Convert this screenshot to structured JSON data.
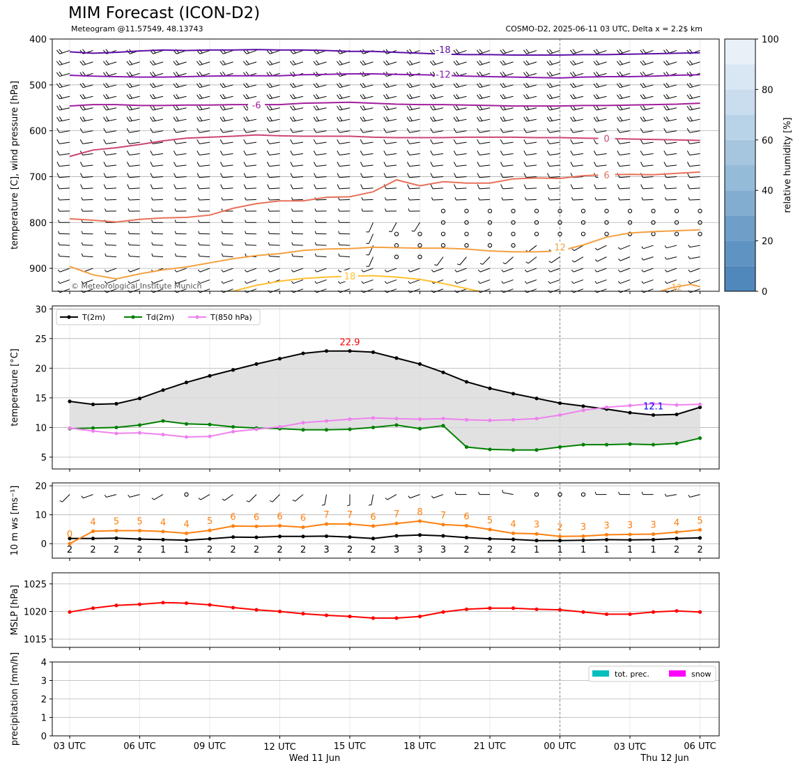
{
  "header": {
    "title": "MIM Forecast (ICON-D2)",
    "subtitle_left": "Meteogram @11.57549, 48.13743",
    "subtitle_right": "COSMO-D2, 2025-06-11 03 UTC, Delta x = 2.2$ km",
    "copyright": "© Meteorological Institute Munich"
  },
  "colors": {
    "t2m": "#000000",
    "td2m": "#008000",
    "t850": "#ee82ee",
    "speed": "#ff7f0e",
    "mslp": "#ff0000",
    "precip": "#00bfbf",
    "snow": "#ff00ff",
    "annot_max": "#ff0000",
    "annot_min": "#0000ff"
  },
  "chart_data": [
    {
      "id": "upper_air",
      "type": "heatmap",
      "ylabel": "temperature [C], wind pressure [hPa]",
      "yticks": [
        400,
        500,
        600,
        700,
        800,
        900
      ],
      "ylim": [
        950,
        400
      ],
      "colorbar": {
        "label": "relative humidity [%]",
        "ticks": [
          0,
          20,
          40,
          60,
          80,
          100
        ]
      },
      "isotherms": [
        {
          "label": "-18",
          "color": "#5b0fa8",
          "p": [
            428,
            431,
            429,
            426,
            424,
            425,
            424,
            424,
            423,
            424,
            424,
            425,
            427,
            427,
            429,
            431,
            433,
            434,
            434,
            435,
            435,
            435,
            434,
            434,
            433,
            432,
            431,
            430
          ]
        },
        {
          "label": "-12",
          "color": "#8a1ab0",
          "p": [
            479,
            481,
            482,
            483,
            483,
            482,
            481,
            480,
            480,
            480,
            478,
            477,
            476,
            476,
            477,
            478,
            479,
            481,
            482,
            483,
            484,
            485,
            483,
            482,
            482,
            481,
            479,
            478
          ]
        },
        {
          "label": "-6",
          "color": "#a21e9a",
          "p": [
            546,
            543,
            543,
            545,
            545,
            544,
            544,
            543,
            543,
            543,
            540,
            539,
            538,
            540,
            542,
            543,
            543,
            544,
            545,
            546,
            546,
            546,
            545,
            545,
            544,
            543,
            542,
            540
          ]
        },
        {
          "label": "0",
          "color": "#cc4477",
          "p": [
            656,
            642,
            637,
            630,
            622,
            616,
            614,
            612,
            609,
            611,
            612,
            612,
            612,
            614,
            615,
            615,
            615,
            614,
            614,
            614,
            615,
            615,
            616,
            617,
            618,
            619,
            620,
            621
          ]
        },
        {
          "label": "6",
          "color": "#e8705a",
          "p": [
            792,
            795,
            799,
            793,
            790,
            789,
            784,
            769,
            759,
            753,
            753,
            745,
            744,
            733,
            707,
            720,
            711,
            714,
            714,
            705,
            703,
            704,
            698,
            696,
            695,
            696,
            693,
            690
          ]
        },
        {
          "label": "12",
          "color": "#f4a040",
          "p": [
            896,
            914,
            923,
            912,
            903,
            897,
            888,
            879,
            872,
            868,
            861,
            858,
            857,
            854,
            855,
            856,
            856,
            858,
            862,
            864,
            864,
            862,
            849,
            832,
            823,
            820,
            818,
            816
          ]
        },
        {
          "label": "18",
          "color": "#ffc030",
          "p": [
            955,
            955,
            955,
            955,
            955,
            955,
            955,
            950,
            937,
            928,
            922,
            919,
            917,
            916,
            919,
            924,
            933,
            944,
            955,
            955,
            955,
            955,
            955,
            955,
            955,
            955,
            955,
            955
          ]
        }
      ],
      "isotherm18b": [
        {
          "x": 25.0,
          "p": 955
        },
        {
          "x": 25.8,
          "p": 942
        },
        {
          "x": 26.6,
          "p": 935
        },
        {
          "x": 27.0,
          "p": 940
        }
      ]
    },
    {
      "id": "temperature",
      "type": "line",
      "ylabel": "temperature [$^\\circ$C]",
      "ylim": [
        3,
        30.5
      ],
      "yticks": [
        5,
        10,
        15,
        20,
        25,
        30
      ],
      "x_hours": [
        0,
        1,
        2,
        3,
        4,
        5,
        6,
        7,
        8,
        9,
        10,
        11,
        12,
        13,
        14,
        15,
        16,
        17,
        18,
        19,
        20,
        21,
        22,
        23,
        24,
        25,
        26,
        27
      ],
      "series": [
        {
          "name": "T(2m)",
          "values": [
            14.4,
            13.9,
            14.0,
            14.9,
            16.3,
            17.6,
            18.7,
            19.7,
            20.7,
            21.6,
            22.5,
            22.9,
            22.9,
            22.7,
            21.7,
            20.7,
            19.3,
            17.7,
            16.6,
            15.7,
            14.9,
            14.1,
            13.6,
            13.1,
            12.5,
            12.1,
            12.2,
            13.4
          ]
        },
        {
          "name": "Td(2m)",
          "values": [
            9.8,
            9.9,
            10.0,
            10.4,
            11.1,
            10.6,
            10.5,
            10.1,
            9.9,
            9.8,
            9.6,
            9.6,
            9.7,
            10.0,
            10.4,
            9.8,
            10.3,
            6.7,
            6.3,
            6.2,
            6.2,
            6.7,
            7.1,
            7.1,
            7.2,
            7.1,
            7.3,
            8.2
          ]
        },
        {
          "name": "T(850 hPa)",
          "values": [
            9.9,
            9.4,
            9.0,
            9.1,
            8.8,
            8.4,
            8.5,
            9.3,
            9.7,
            10.1,
            10.8,
            11.1,
            11.4,
            11.6,
            11.5,
            11.4,
            11.5,
            11.3,
            11.2,
            11.3,
            11.5,
            12.1,
            12.9,
            13.4,
            13.7,
            14.0,
            13.8,
            13.9
          ]
        }
      ],
      "annotations": [
        {
          "text": "22.9",
          "x": 12,
          "y": 22.9,
          "role": "max"
        },
        {
          "text": "12.1",
          "x": 25,
          "y": 12.1,
          "role": "min"
        }
      ]
    },
    {
      "id": "wind",
      "type": "line",
      "ylabel": "10 m ws [ms$^{-1}$]",
      "ylim": [
        -5,
        21
      ],
      "yticks": [
        0,
        10,
        20
      ],
      "series": [
        {
          "name": "wind speed",
          "values": [
            1.8,
            1.8,
            1.9,
            1.6,
            1.4,
            1.2,
            1.7,
            2.3,
            2.2,
            2.5,
            2.5,
            2.6,
            2.3,
            1.8,
            2.7,
            3.0,
            2.7,
            2.1,
            1.7,
            1.5,
            1.1,
            1.1,
            1.2,
            1.4,
            1.3,
            1.4,
            1.8,
            2.0
          ],
          "labels": [
            "2",
            "2",
            "2",
            "2",
            "1",
            "1",
            "2",
            "2",
            "2",
            "2",
            "2",
            "3",
            "2",
            "2",
            "3",
            "3",
            "3",
            "2",
            "2",
            "2",
            "1",
            "1",
            "1",
            "1",
            "1",
            "1",
            "2",
            "2"
          ]
        },
        {
          "name": "gusts",
          "values": [
            0,
            4.3,
            4.5,
            4.5,
            4.2,
            3.6,
            4.6,
            6.1,
            6.0,
            6.2,
            5.7,
            6.8,
            6.8,
            6.1,
            7.0,
            7.8,
            6.6,
            6.2,
            4.9,
            3.6,
            3.4,
            2.5,
            2.6,
            3.1,
            3.2,
            3.3,
            4.0,
            4.8
          ],
          "labels": [
            "0",
            "4",
            "5",
            "5",
            "4",
            "4",
            "5",
            "6",
            "6",
            "6",
            "6",
            "7",
            "7",
            "6",
            "7",
            "8",
            "7",
            "6",
            "5",
            "4",
            "3",
            "2",
            "3",
            "3",
            "3",
            "3",
            "4",
            "5"
          ]
        }
      ],
      "wind_dirs": [
        225,
        250,
        255,
        255,
        240,
        null,
        240,
        235,
        225,
        225,
        230,
        190,
        180,
        190,
        240,
        250,
        250,
        270,
        270,
        280,
        null,
        null,
        null,
        270,
        270,
        270,
        260,
        255
      ]
    },
    {
      "id": "pressure",
      "type": "line",
      "ylabel": "MSLP [hPa]",
      "ylim": [
        1013.5,
        1027
      ],
      "yticks": [
        1015,
        1020,
        1025
      ],
      "series": [
        {
          "name": "MSLP",
          "values": [
            1019.9,
            1020.6,
            1021.1,
            1021.3,
            1021.6,
            1021.5,
            1021.2,
            1020.7,
            1020.3,
            1020.0,
            1019.6,
            1019.3,
            1019.1,
            1018.8,
            1018.8,
            1019.1,
            1019.9,
            1020.4,
            1020.6,
            1020.6,
            1020.4,
            1020.3,
            1019.9,
            1019.5,
            1019.5,
            1019.9,
            1020.1,
            1019.9
          ]
        }
      ]
    },
    {
      "id": "precipitation",
      "type": "bar",
      "ylabel": "precipitation [mm/h]",
      "ylim": [
        0,
        4
      ],
      "yticks": [
        0,
        1,
        2,
        3,
        4
      ],
      "series": [
        {
          "name": "tot. prec.",
          "values": [
            0,
            0,
            0,
            0,
            0,
            0,
            0,
            0,
            0,
            0,
            0,
            0,
            0,
            0,
            0,
            0,
            0,
            0,
            0,
            0,
            0,
            0,
            0,
            0,
            0,
            0,
            0,
            0
          ]
        },
        {
          "name": "snow",
          "values": [
            0,
            0,
            0,
            0,
            0,
            0,
            0,
            0,
            0,
            0,
            0,
            0,
            0,
            0,
            0,
            0,
            0,
            0,
            0,
            0,
            0,
            0,
            0,
            0,
            0,
            0,
            0,
            0
          ]
        }
      ]
    }
  ],
  "xaxis": {
    "ticks": [
      {
        "h": 0,
        "label": "03 UTC"
      },
      {
        "h": 3,
        "label": "06 UTC"
      },
      {
        "h": 6,
        "label": "09 UTC"
      },
      {
        "h": 9,
        "label": "12 UTC",
        "date": "Wed 11 Jun"
      },
      {
        "h": 12,
        "label": "15 UTC"
      },
      {
        "h": 15,
        "label": "18 UTC"
      },
      {
        "h": 18,
        "label": "21 UTC"
      },
      {
        "h": 21,
        "label": "00 UTC"
      },
      {
        "h": 24,
        "label": "03 UTC",
        "date": "Thu 12 Jun"
      },
      {
        "h": 27,
        "label": "06 UTC"
      }
    ],
    "date_marker_h": 21
  },
  "legends": {
    "temperature": [
      "T(2m)",
      "Td(2m)",
      "T(850 hPa)"
    ],
    "precipitation": [
      "tot. prec.",
      "snow"
    ]
  }
}
